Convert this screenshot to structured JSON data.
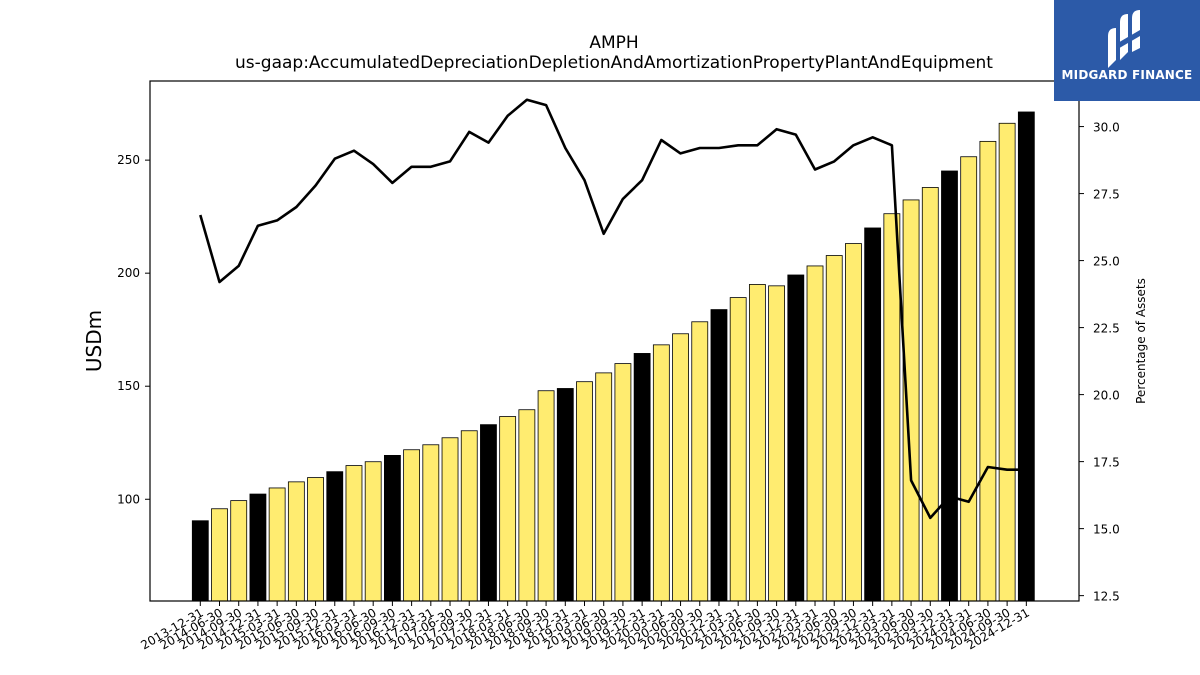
{
  "brand": {
    "name": "MIDGARD FINANCE",
    "colors": {
      "background": "#2c5aa8",
      "text": "#ffffff"
    }
  },
  "chart_data": {
    "type": "bar",
    "title": "AMPH",
    "subtitle": "us-gaap:AccumulatedDepreciationDepletionAndAmortizationPropertyPlantAndEquipment",
    "ylabel": "USDm",
    "y2label": "Percentage of Assets",
    "ylim": [
      55,
      285
    ],
    "y2lim": [
      12.3,
      31.7
    ],
    "yticks": [
      100,
      150,
      200,
      250
    ],
    "y2ticks": [
      "12.5",
      "15.0",
      "17.5",
      "20.0",
      "22.5",
      "25.0",
      "27.5",
      "30.0"
    ],
    "grid": false,
    "colors": {
      "annual_bar": "#000000",
      "quarter_bar": "#ffec70",
      "bar_edge": "#000000",
      "line": "#000000"
    },
    "categories": [
      "2013-12-31",
      "2014-06-30",
      "2014-09-30",
      "2014-12-31",
      "2015-03-31",
      "2015-06-30",
      "2015-09-30",
      "2015-12-31",
      "2016-03-31",
      "2016-06-30",
      "2016-09-30",
      "2016-12-31",
      "2017-03-31",
      "2017-06-30",
      "2017-09-30",
      "2017-12-31",
      "2018-03-31",
      "2018-06-30",
      "2018-09-30",
      "2018-12-31",
      "2019-03-31",
      "2019-06-30",
      "2019-09-30",
      "2019-12-31",
      "2020-03-31",
      "2020-06-30",
      "2020-09-30",
      "2020-12-31",
      "2021-03-31",
      "2021-06-30",
      "2021-09-30",
      "2021-12-31",
      "2022-03-31",
      "2022-06-30",
      "2022-09-30",
      "2022-12-31",
      "2023-03-31",
      "2023-06-30",
      "2023-09-30",
      "2023-12-31",
      "2024-03-31",
      "2024-06-30",
      "2024-09-30",
      "2024-12-31"
    ],
    "series": [
      {
        "kind": "bar",
        "values": [
          90.5,
          95.8,
          99.4,
          102.3,
          105.0,
          107.7,
          109.6,
          112.2,
          114.9,
          116.6,
          119.4,
          121.9,
          124.1,
          127.2,
          130.3,
          133.0,
          136.6,
          139.6,
          148.0,
          149.0,
          152.0,
          155.9,
          160.0,
          164.5,
          168.3,
          173.2,
          178.5,
          183.9,
          189.2,
          195.0,
          194.4,
          199.2,
          203.2,
          207.8,
          213.1,
          220.0,
          226.3,
          232.4,
          237.9,
          245.2,
          251.5,
          258.3,
          266.3,
          271.3
        ],
        "annual": [
          true,
          false,
          false,
          true,
          false,
          false,
          false,
          true,
          false,
          false,
          true,
          false,
          false,
          false,
          false,
          true,
          false,
          false,
          false,
          true,
          false,
          false,
          false,
          true,
          false,
          false,
          false,
          true,
          false,
          false,
          false,
          true,
          false,
          false,
          false,
          true,
          false,
          false,
          false,
          true,
          false,
          false,
          false,
          true
        ]
      },
      {
        "kind": "line",
        "axis": "right",
        "values": [
          26.7,
          24.2,
          24.8,
          26.3,
          26.5,
          27.0,
          27.8,
          28.8,
          29.1,
          28.6,
          27.9,
          28.5,
          28.5,
          28.7,
          29.8,
          29.4,
          30.4,
          31.0,
          30.8,
          29.2,
          28.0,
          26.0,
          27.3,
          28.0,
          29.5,
          29.0,
          29.2,
          29.2,
          29.3,
          29.3,
          29.9,
          29.7,
          28.4,
          28.7,
          29.3,
          29.6,
          29.3,
          16.8,
          15.4,
          16.2,
          16.0,
          17.3,
          17.2,
          17.2
        ]
      }
    ]
  }
}
